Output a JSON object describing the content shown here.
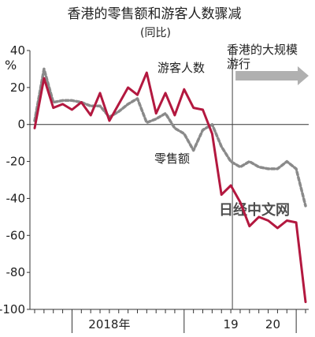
{
  "chart_data": {
    "type": "line",
    "title": "香港的零售额和游客人数骤减",
    "subtitle": "(同比)",
    "unit": "%",
    "ylim": [
      -100,
      40
    ],
    "yticks": [
      "40",
      "20",
      "0",
      "-20",
      "-40",
      "-60",
      "-80",
      "-100"
    ],
    "x_labels": [
      {
        "text": "2018年",
        "month_index": 8
      },
      {
        "text": "19",
        "month_index": 21
      },
      {
        "text": "20",
        "month_index": 25.5
      }
    ],
    "annotation": "香港的大规模游行",
    "annotation_start": "2019-06",
    "watermark": "日经中文网",
    "grid": false,
    "series": [
      {
        "name": "游客人数",
        "color": "#b3183f",
        "style": "solid",
        "x": [
          "2017-09",
          "2017-10",
          "2017-11",
          "2017-12",
          "2018-01",
          "2018-02",
          "2018-03",
          "2018-04",
          "2018-05",
          "2018-06",
          "2018-07",
          "2018-08",
          "2018-09",
          "2018-10",
          "2018-11",
          "2018-12",
          "2019-01",
          "2019-02",
          "2019-03",
          "2019-04",
          "2019-05",
          "2019-06",
          "2019-07",
          "2019-08",
          "2019-09",
          "2019-10",
          "2019-11",
          "2019-12",
          "2020-01",
          "2020-02"
        ],
        "values": [
          -2,
          25,
          9,
          11,
          8,
          12,
          5,
          17,
          2,
          11,
          20,
          16,
          28,
          6,
          17,
          5,
          19,
          9,
          8,
          -5,
          -38,
          -33,
          -42,
          -55,
          -50,
          -52,
          -56,
          -52,
          -53,
          -96
        ]
      },
      {
        "name": "零售额",
        "color": "#8a8a8a",
        "style": "dashed",
        "x": [
          "2017-09",
          "2017-10",
          "2017-11",
          "2017-12",
          "2018-01",
          "2018-02",
          "2018-03",
          "2018-04",
          "2018-05",
          "2018-06",
          "2018-07",
          "2018-08",
          "2018-09",
          "2018-10",
          "2018-11",
          "2018-12",
          "2019-01",
          "2019-02",
          "2019-03",
          "2019-04",
          "2019-05",
          "2019-06",
          "2019-07",
          "2019-08",
          "2019-09",
          "2019-10",
          "2019-11",
          "2019-12",
          "2020-01",
          "2020-02"
        ],
        "values": [
          2,
          30,
          12,
          13,
          13,
          12,
          10,
          10,
          4,
          7,
          11,
          14,
          1,
          3,
          6,
          -2,
          -5,
          -14,
          -3,
          0,
          -12,
          -20,
          -23,
          -20,
          -23,
          -24,
          -24,
          -20,
          -24,
          -44
        ]
      }
    ],
    "series_labels": [
      {
        "series": 0,
        "text": "游客人数"
      },
      {
        "series": 1,
        "text": "零售额"
      }
    ]
  }
}
